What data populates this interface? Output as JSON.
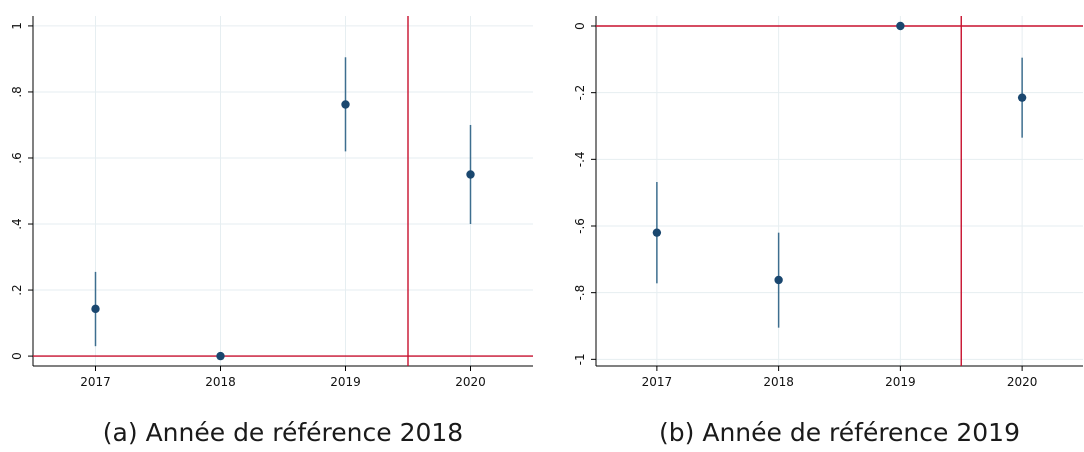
{
  "colors": {
    "point": "#1a476f",
    "ci_line": "#3d6e8f",
    "reference_line": "#c8102e",
    "grid": "#e6eef1",
    "axis": "#000000"
  },
  "chart_data": [
    {
      "type": "scatter",
      "subtype": "coefficient-plot-with-confidence-intervals",
      "caption": "(a) Année de référence 2018",
      "x": [
        "2017",
        "2018",
        "2019",
        "2020"
      ],
      "estimates": [
        0.143,
        0.0,
        0.762,
        0.55
      ],
      "ci_low": [
        0.03,
        0.0,
        0.62,
        0.4
      ],
      "ci_high": [
        0.255,
        0.0,
        0.905,
        0.7
      ],
      "ylim": [
        -0.03,
        1.03
      ],
      "yticks": [
        0,
        0.2,
        0.4,
        0.6,
        0.8,
        1
      ],
      "ytick_labels": [
        "0",
        ".2",
        ".4",
        ".6",
        ".8",
        "1"
      ],
      "xlim": [
        2016.5,
        2020.5
      ],
      "vline_x": 2019.5,
      "hline_y": 0,
      "grid": true,
      "legend": "none"
    },
    {
      "type": "scatter",
      "subtype": "coefficient-plot-with-confidence-intervals",
      "caption": "(b) Année de référence 2019",
      "x": [
        "2017",
        "2018",
        "2019",
        "2020"
      ],
      "estimates": [
        -0.62,
        -0.762,
        0.0,
        -0.215
      ],
      "ci_low": [
        -0.772,
        -0.905,
        0.0,
        -0.335
      ],
      "ci_high": [
        -0.468,
        -0.62,
        0.0,
        -0.095
      ],
      "ylim": [
        -1.02,
        0.03
      ],
      "yticks": [
        0,
        -0.2,
        -0.4,
        -0.6,
        -0.8,
        -1
      ],
      "ytick_labels": [
        "0",
        "-.2",
        "-.4",
        "-.6",
        "-.8",
        "-1"
      ],
      "xlim": [
        2016.5,
        2020.5
      ],
      "vline_x": 2019.5,
      "hline_y": 0,
      "grid": true,
      "legend": "none"
    }
  ]
}
